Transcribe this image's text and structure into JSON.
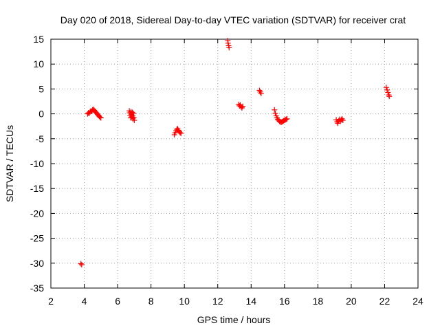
{
  "chart_data": {
    "type": "scatter",
    "title": "Day 020 of 2018, Sidereal Day-to-day VTEC variation (SDTVAR) for receiver crat",
    "xlabel": "GPS time / hours",
    "ylabel": "SDTVAR / TECUs",
    "xlim": [
      2,
      24
    ],
    "ylim": [
      -35,
      15
    ],
    "xticks": [
      2,
      4,
      6,
      8,
      10,
      12,
      14,
      16,
      18,
      20,
      22,
      24
    ],
    "yticks": [
      15,
      10,
      5,
      0,
      -5,
      -10,
      -15,
      -20,
      -25,
      -30,
      -35
    ],
    "grid": true,
    "marker": "+",
    "marker_color": "#ff0000",
    "series": [
      {
        "name": "SDTVAR",
        "points": [
          [
            3.8,
            -30.1
          ],
          [
            3.85,
            -30.3
          ],
          [
            4.2,
            0.0
          ],
          [
            4.25,
            0.2
          ],
          [
            4.3,
            0.1
          ],
          [
            4.35,
            0.4
          ],
          [
            4.4,
            0.6
          ],
          [
            4.45,
            0.5
          ],
          [
            4.5,
            0.8
          ],
          [
            4.55,
            0.9
          ],
          [
            4.6,
            0.7
          ],
          [
            4.65,
            0.5
          ],
          [
            4.7,
            0.3
          ],
          [
            4.75,
            0.1
          ],
          [
            4.8,
            -0.1
          ],
          [
            4.85,
            -0.3
          ],
          [
            4.9,
            -0.5
          ],
          [
            4.95,
            -0.7
          ],
          [
            5.0,
            -0.8
          ],
          [
            6.7,
            0.6
          ],
          [
            6.72,
            0.2
          ],
          [
            6.75,
            -0.3
          ],
          [
            6.78,
            -0.8
          ],
          [
            6.8,
            0.4
          ],
          [
            6.83,
            -0.1
          ],
          [
            6.85,
            -0.6
          ],
          [
            6.88,
            0.3
          ],
          [
            6.9,
            -0.4
          ],
          [
            6.92,
            -1.0
          ],
          [
            6.95,
            0.1
          ],
          [
            6.97,
            -0.7
          ],
          [
            7.0,
            -1.3
          ],
          [
            9.4,
            -4.2
          ],
          [
            9.45,
            -3.8
          ],
          [
            9.5,
            -3.4
          ],
          [
            9.55,
            -3.1
          ],
          [
            9.6,
            -3.0
          ],
          [
            9.65,
            -3.3
          ],
          [
            9.7,
            -3.6
          ],
          [
            9.75,
            -3.8
          ],
          [
            9.8,
            -3.9
          ],
          [
            12.6,
            14.7
          ],
          [
            12.62,
            14.2
          ],
          [
            12.65,
            13.7
          ],
          [
            12.68,
            13.3
          ],
          [
            13.25,
            1.9
          ],
          [
            13.3,
            1.6
          ],
          [
            13.35,
            1.8
          ],
          [
            13.4,
            1.4
          ],
          [
            13.45,
            1.2
          ],
          [
            13.5,
            1.5
          ],
          [
            14.5,
            4.7
          ],
          [
            14.55,
            4.4
          ],
          [
            14.6,
            4.1
          ],
          [
            15.4,
            0.8
          ],
          [
            15.45,
            0.1
          ],
          [
            15.5,
            -0.4
          ],
          [
            15.55,
            -0.8
          ],
          [
            15.6,
            -1.1
          ],
          [
            15.65,
            -1.3
          ],
          [
            15.7,
            -1.5
          ],
          [
            15.75,
            -1.6
          ],
          [
            15.8,
            -1.7
          ],
          [
            15.85,
            -1.6
          ],
          [
            15.9,
            -1.5
          ],
          [
            15.95,
            -1.4
          ],
          [
            16.0,
            -1.3
          ],
          [
            16.05,
            -1.2
          ],
          [
            16.1,
            -1.1
          ],
          [
            16.15,
            -1.0
          ],
          [
            19.1,
            -1.2
          ],
          [
            19.15,
            -1.6
          ],
          [
            19.2,
            -1.9
          ],
          [
            19.25,
            -1.4
          ],
          [
            19.3,
            -1.1
          ],
          [
            19.35,
            -1.5
          ],
          [
            19.4,
            -1.2
          ],
          [
            19.45,
            -1.0
          ],
          [
            19.5,
            -1.3
          ],
          [
            22.1,
            5.3
          ],
          [
            22.15,
            4.8
          ],
          [
            22.2,
            4.3
          ],
          [
            22.25,
            3.8
          ],
          [
            22.28,
            3.5
          ]
        ]
      }
    ]
  }
}
